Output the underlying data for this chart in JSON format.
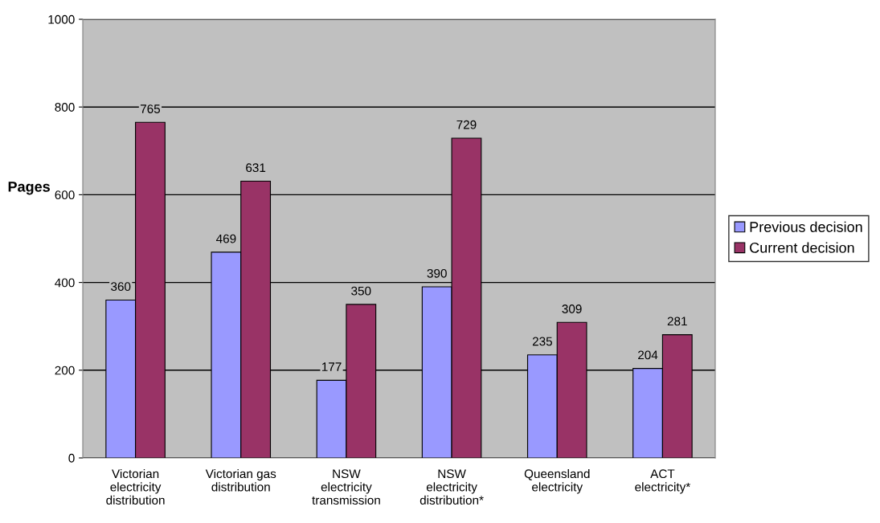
{
  "chart_data": {
    "type": "bar",
    "ylabel": "Pages",
    "categories": [
      "Victorian\nelectricity\ndistribution",
      "Victorian gas\ndistribution",
      "NSW\nelectricity\ntransmission",
      "NSW\nelectricity\ndistribution*",
      "Queensland\nelectricity",
      "ACT\nelectricity*"
    ],
    "series": [
      {
        "name": "Previous decision",
        "color": "#9999ff",
        "values": [
          360,
          469,
          177,
          390,
          235,
          204
        ]
      },
      {
        "name": "Current decision",
        "color": "#993366",
        "values": [
          765,
          631,
          350,
          729,
          309,
          281
        ]
      }
    ],
    "ylim": [
      0,
      1000
    ],
    "yticks": [
      0,
      200,
      400,
      600,
      800,
      1000
    ],
    "grid": "y",
    "legend": "right",
    "data_labels": true
  }
}
